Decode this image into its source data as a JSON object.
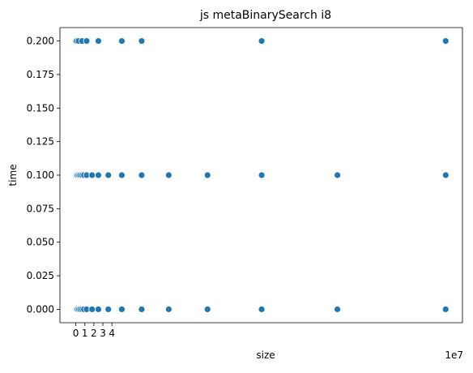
{
  "chart_data": {
    "type": "scatter",
    "title": "js metaBinarySearch i8",
    "xlabel": "size",
    "ylabel": "time",
    "x_offset_label": "1e7",
    "xlim": [
      -1.76,
      42.86
    ],
    "ylim": [
      -0.01,
      0.21
    ],
    "x_ticks": [
      0,
      1,
      2,
      3,
      4
    ],
    "x_tick_labels": [
      "0",
      "1",
      "2",
      "3",
      "4"
    ],
    "y_ticks": [
      0.0,
      0.025,
      0.05,
      0.075,
      0.1,
      0.125,
      0.15,
      0.175,
      0.2
    ],
    "y_tick_labels": [
      "0.000",
      "0.025",
      "0.050",
      "0.075",
      "0.100",
      "0.125",
      "0.150",
      "0.175",
      "0.200"
    ],
    "marker_color": "#1f77b4",
    "grid": false,
    "points": [
      {
        "x": 0.0,
        "y": 0.0
      },
      {
        "x": 0.02,
        "y": 0.0
      },
      {
        "x": 0.05,
        "y": 0.0
      },
      {
        "x": 0.1,
        "y": 0.0
      },
      {
        "x": 0.2,
        "y": 0.0
      },
      {
        "x": 0.35,
        "y": 0.0
      },
      {
        "x": 0.5,
        "y": 0.0
      },
      {
        "x": 0.7,
        "y": 0.0
      },
      {
        "x": 0.9,
        "y": 0.0
      },
      {
        "x": 1.2,
        "y": 0.0
      },
      {
        "x": 1.8,
        "y": 0.0
      },
      {
        "x": 2.5,
        "y": 0.0
      },
      {
        "x": 3.6,
        "y": 0.0
      },
      {
        "x": 5.1,
        "y": 0.0
      },
      {
        "x": 7.3,
        "y": 0.0
      },
      {
        "x": 10.3,
        "y": 0.0
      },
      {
        "x": 14.6,
        "y": 0.0
      },
      {
        "x": 20.6,
        "y": 0.0
      },
      {
        "x": 29.0,
        "y": 0.0
      },
      {
        "x": 41.0,
        "y": 0.0
      },
      {
        "x": 0.0,
        "y": 0.1
      },
      {
        "x": 0.05,
        "y": 0.1
      },
      {
        "x": 0.1,
        "y": 0.1
      },
      {
        "x": 0.2,
        "y": 0.1
      },
      {
        "x": 0.35,
        "y": 0.1
      },
      {
        "x": 0.5,
        "y": 0.1
      },
      {
        "x": 0.7,
        "y": 0.1
      },
      {
        "x": 0.9,
        "y": 0.1
      },
      {
        "x": 1.2,
        "y": 0.1
      },
      {
        "x": 1.8,
        "y": 0.1
      },
      {
        "x": 2.5,
        "y": 0.1
      },
      {
        "x": 3.6,
        "y": 0.1
      },
      {
        "x": 5.1,
        "y": 0.1
      },
      {
        "x": 7.3,
        "y": 0.1
      },
      {
        "x": 10.3,
        "y": 0.1
      },
      {
        "x": 14.6,
        "y": 0.1
      },
      {
        "x": 20.6,
        "y": 0.1
      },
      {
        "x": 29.0,
        "y": 0.1
      },
      {
        "x": 41.0,
        "y": 0.1
      },
      {
        "x": 0.0,
        "y": 0.2
      },
      {
        "x": 0.1,
        "y": 0.2
      },
      {
        "x": 0.3,
        "y": 0.2
      },
      {
        "x": 0.7,
        "y": 0.2
      },
      {
        "x": 1.2,
        "y": 0.2
      },
      {
        "x": 2.5,
        "y": 0.2
      },
      {
        "x": 5.1,
        "y": 0.2
      },
      {
        "x": 7.3,
        "y": 0.2
      },
      {
        "x": 20.6,
        "y": 0.2
      },
      {
        "x": 41.0,
        "y": 0.2
      }
    ]
  }
}
